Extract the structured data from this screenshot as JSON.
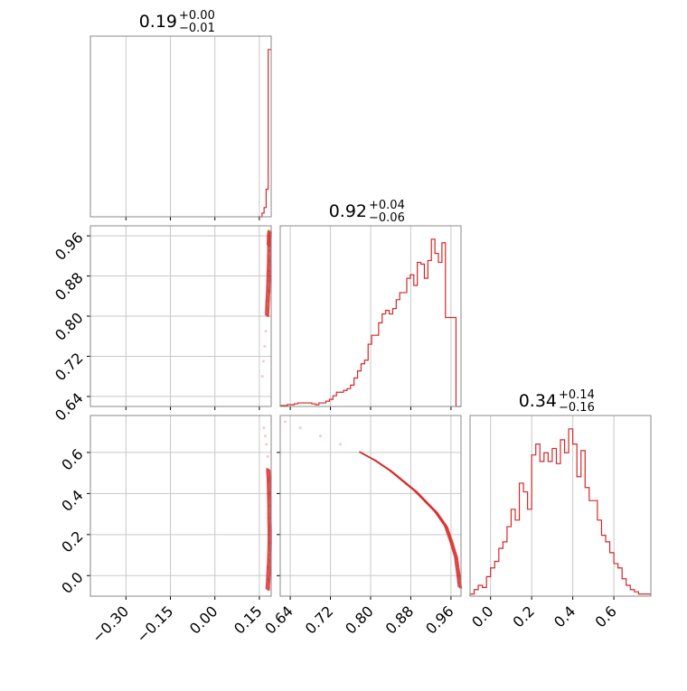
{
  "chart_data": {
    "type": "corner",
    "color": "#d62728",
    "grid": true,
    "panels": [
      {
        "id": "hist-p0",
        "type": "histogram-step",
        "title": {
          "value": "0.19",
          "upper": "+0.00",
          "lower": "−0.01"
        },
        "xlim": [
          -0.42,
          0.19
        ],
        "xticks": [
          -0.3,
          -0.15,
          0.0,
          0.15
        ],
        "x_edges": [
          0.145,
          0.152,
          0.159,
          0.166,
          0.173,
          0.18,
          0.187,
          0.194
        ],
        "counts": [
          0,
          0,
          0.02,
          0.05,
          0.15,
          0.91,
          0.91
        ]
      },
      {
        "id": "scatter-p0-p1",
        "type": "density-contour",
        "xlim": [
          -0.42,
          0.19
        ],
        "ylim": [
          0.62,
          0.98
        ],
        "xticks": [
          -0.3,
          -0.15,
          0.0,
          0.15
        ],
        "yticks": [
          0.64,
          0.72,
          0.8,
          0.88,
          0.96
        ],
        "yticklabels": [
          "0.64",
          "0.72",
          "0.80",
          "0.88",
          "0.96"
        ],
        "points": [
          [
            0.16,
            0.68
          ],
          [
            0.164,
            0.71
          ],
          [
            0.168,
            0.74
          ],
          [
            0.172,
            0.77
          ],
          [
            0.176,
            0.8
          ],
          [
            0.178,
            0.83
          ],
          [
            0.18,
            0.85
          ],
          [
            0.181,
            0.87
          ],
          [
            0.182,
            0.89
          ],
          [
            0.183,
            0.91
          ],
          [
            0.184,
            0.93
          ],
          [
            0.184,
            0.95
          ],
          [
            0.185,
            0.97
          ],
          [
            0.183,
            0.96
          ],
          [
            0.182,
            0.94
          ]
        ]
      },
      {
        "id": "hist-p1",
        "type": "histogram-step",
        "title": {
          "value": "0.92",
          "upper": "+0.04",
          "lower": "−0.06"
        },
        "xlim": [
          0.62,
          0.98
        ],
        "xticks": [
          0.64,
          0.72,
          0.8,
          0.88,
          0.96
        ],
        "xticklabels": [
          "0.64",
          "0.72",
          "0.80",
          "0.88",
          "0.96"
        ],
        "x_edges": [
          0.62,
          0.627,
          0.634,
          0.641,
          0.648,
          0.655,
          0.662,
          0.669,
          0.676,
          0.683,
          0.69,
          0.697,
          0.704,
          0.711,
          0.718,
          0.725,
          0.732,
          0.739,
          0.746,
          0.753,
          0.76,
          0.767,
          0.774,
          0.781,
          0.788,
          0.795,
          0.802,
          0.809,
          0.816,
          0.823,
          0.83,
          0.837,
          0.844,
          0.851,
          0.858,
          0.865,
          0.872,
          0.879,
          0.886,
          0.893,
          0.9,
          0.907,
          0.914,
          0.921,
          0.928,
          0.935,
          0.942,
          0.949,
          0.956,
          0.963,
          0.97,
          0.977,
          0.984
        ],
        "counts": [
          0.005,
          0.005,
          0.01,
          0.01,
          0.015,
          0.02,
          0.02,
          0.02,
          0.02,
          0.015,
          0.01,
          0.02,
          0.02,
          0.03,
          0.04,
          0.06,
          0.08,
          0.08,
          0.09,
          0.1,
          0.12,
          0.16,
          0.2,
          0.24,
          0.26,
          0.35,
          0.4,
          0.4,
          0.47,
          0.52,
          0.54,
          0.52,
          0.55,
          0.6,
          0.64,
          0.64,
          0.72,
          0.74,
          0.68,
          0.81,
          0.8,
          0.72,
          0.82,
          0.94,
          0.86,
          0.81,
          0.92,
          0.5,
          0.5,
          0.5,
          0.0,
          0.0
        ]
      },
      {
        "id": "scatter-p0-p2",
        "type": "density-contour",
        "xlim": [
          -0.42,
          0.19
        ],
        "ylim": [
          -0.1,
          0.78
        ],
        "xticks": [
          -0.3,
          -0.15,
          0.0,
          0.15
        ],
        "xticklabels": [
          "−0.30",
          "−0.15",
          "0.00",
          "0.15"
        ],
        "yticks": [
          0.0,
          0.2,
          0.4,
          0.6
        ],
        "yticklabels": [
          "0.0",
          "0.2",
          "0.4",
          "0.6"
        ],
        "points": [
          [
            0.165,
            0.72
          ],
          [
            0.17,
            0.68
          ],
          [
            0.174,
            0.64
          ],
          [
            0.178,
            0.58
          ],
          [
            0.18,
            0.52
          ],
          [
            0.182,
            0.46
          ],
          [
            0.183,
            0.4
          ],
          [
            0.184,
            0.34
          ],
          [
            0.184,
            0.28
          ],
          [
            0.185,
            0.22
          ],
          [
            0.185,
            0.16
          ],
          [
            0.184,
            0.1
          ],
          [
            0.182,
            0.04
          ],
          [
            0.18,
            -0.02
          ],
          [
            0.178,
            -0.07
          ]
        ]
      },
      {
        "id": "scatter-p1-p2",
        "type": "density-contour",
        "xlim": [
          0.62,
          0.98
        ],
        "ylim": [
          -0.1,
          0.78
        ],
        "xticks": [
          0.64,
          0.72,
          0.8,
          0.88,
          0.96
        ],
        "xticklabels": [
          "0.64",
          "0.72",
          "0.80",
          "0.88",
          "0.96"
        ],
        "yticks": [
          0.0,
          0.2,
          0.4,
          0.6
        ],
        "points": [
          [
            0.63,
            0.75
          ],
          [
            0.66,
            0.72
          ],
          [
            0.7,
            0.68
          ],
          [
            0.74,
            0.64
          ],
          [
            0.78,
            0.6
          ],
          [
            0.81,
            0.56
          ],
          [
            0.84,
            0.51
          ],
          [
            0.87,
            0.45
          ],
          [
            0.89,
            0.41
          ],
          [
            0.91,
            0.36
          ],
          [
            0.93,
            0.31
          ],
          [
            0.95,
            0.24
          ],
          [
            0.96,
            0.17
          ],
          [
            0.97,
            0.09
          ],
          [
            0.975,
            0.0
          ],
          [
            0.978,
            -0.06
          ]
        ]
      },
      {
        "id": "hist-p2",
        "type": "histogram-step",
        "title": {
          "value": "0.34",
          "upper": "+0.14",
          "lower": "−0.16"
        },
        "xlim": [
          -0.1,
          0.78
        ],
        "xticks": [
          0.0,
          0.2,
          0.4,
          0.6
        ],
        "xticklabels": [
          "0.0",
          "0.2",
          "0.4",
          "0.6"
        ],
        "x_edges": [
          -0.1,
          -0.08,
          -0.06,
          -0.04,
          -0.02,
          0.0,
          0.02,
          0.04,
          0.06,
          0.08,
          0.1,
          0.12,
          0.14,
          0.16,
          0.18,
          0.2,
          0.22,
          0.24,
          0.26,
          0.28,
          0.3,
          0.32,
          0.34,
          0.36,
          0.38,
          0.4,
          0.42,
          0.44,
          0.46,
          0.48,
          0.5,
          0.52,
          0.54,
          0.56,
          0.58,
          0.6,
          0.62,
          0.64,
          0.66,
          0.68,
          0.7,
          0.72,
          0.74,
          0.76,
          0.78
        ],
        "counts": [
          0.01,
          0.03,
          0.05,
          0.04,
          0.09,
          0.13,
          0.16,
          0.22,
          0.25,
          0.32,
          0.4,
          0.35,
          0.52,
          0.48,
          0.4,
          0.65,
          0.7,
          0.62,
          0.66,
          0.62,
          0.68,
          0.61,
          0.72,
          0.66,
          0.77,
          0.7,
          0.55,
          0.67,
          0.5,
          0.44,
          0.44,
          0.35,
          0.28,
          0.25,
          0.2,
          0.15,
          0.13,
          0.08,
          0.05,
          0.03,
          0.02,
          0.01,
          0.01,
          0.01
        ]
      }
    ]
  }
}
